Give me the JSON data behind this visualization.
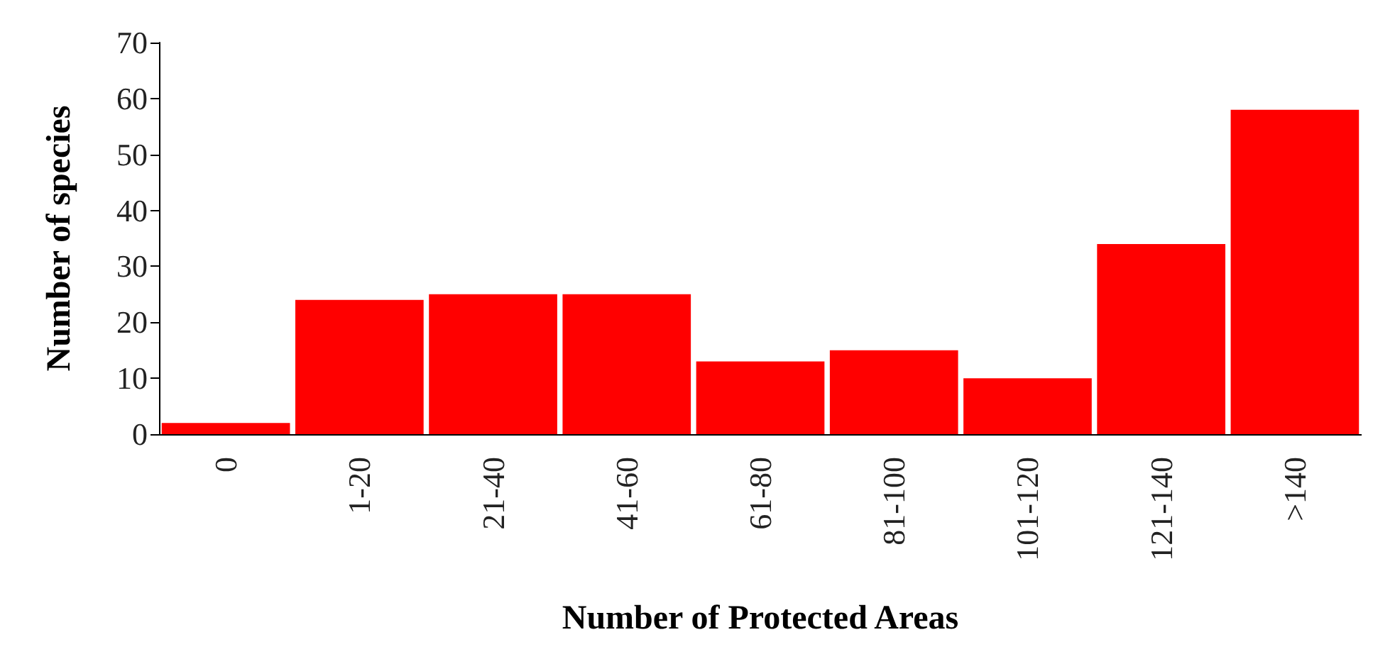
{
  "chart_data": {
    "type": "bar",
    "xlabel": "Number of Protected Areas",
    "ylabel": "Number of species",
    "categories": [
      "0",
      "1-20",
      "21-40",
      "41-60",
      "61-80",
      "81-100",
      "101-120",
      "121-140",
      ">140"
    ],
    "values": [
      2,
      24,
      25,
      25,
      13,
      15,
      10,
      34,
      58
    ],
    "color": "#ff0000",
    "ylim": [
      0,
      70
    ],
    "yticks": [
      0,
      10,
      20,
      30,
      40,
      50,
      60,
      70
    ],
    "grid": false
  }
}
